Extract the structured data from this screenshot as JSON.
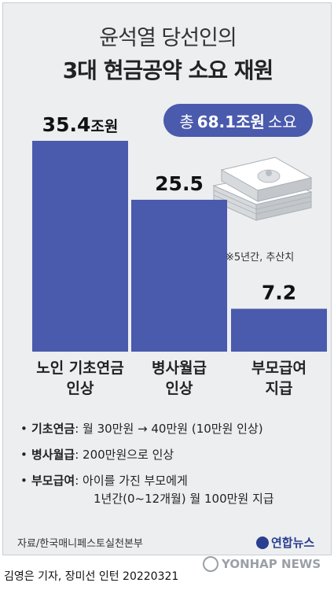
{
  "header": {
    "title_line1": "윤석열 당선인의",
    "title_line2": "3대 현금공약 소요 재원"
  },
  "total_badge": {
    "prefix": "총",
    "value": "68.1조원",
    "suffix": "소요"
  },
  "note": "※5년간, 추산치",
  "chart_data": {
    "type": "bar",
    "categories": [
      "노인 기초연금 인상",
      "병사월급 인상",
      "부모급여 지급"
    ],
    "category_lines": [
      [
        "노인 기초연금",
        "인상"
      ],
      [
        "병사월급",
        "인상"
      ],
      [
        "부모급여",
        "지급"
      ]
    ],
    "values": [
      35.4,
      25.5,
      7.2
    ],
    "value_labels": [
      "35.4",
      "25.5",
      "7.2"
    ],
    "first_label_unit": "조원",
    "ylim": [
      0,
      35.4
    ],
    "grid": false,
    "bar_color": "#4a5aad"
  },
  "bullets": [
    {
      "key": "기초연금",
      "value": ": 월 30만원 → 40만원 (10만원 인상)"
    },
    {
      "key": "병사월급",
      "value": ": 200만원으로 인상"
    },
    {
      "key": "부모급여",
      "value": ": 아이를 가진 부모에게",
      "value2": "1년간(0~12개월) 월 100만원 지급"
    }
  ],
  "source": "자료/한국매니페스토실천본부",
  "logo": "연합뉴스",
  "credit": "김영은 기자, 장미선 인턴  20220321",
  "watermark": "YONHAP NEWS",
  "colors": {
    "bar": "#4a5aad",
    "background": "#eceef0",
    "badge": "#4a5aad"
  }
}
